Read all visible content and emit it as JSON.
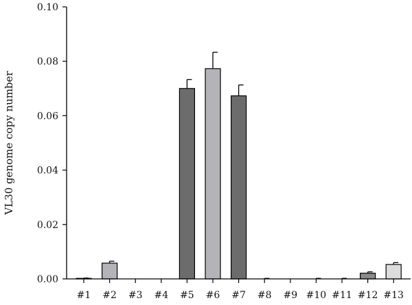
{
  "chart_data": {
    "type": "bar",
    "title": "",
    "xlabel": "",
    "ylabel": "VL30 genome copy number",
    "ylim": [
      0,
      0.1
    ],
    "yticks": [
      "0.00",
      "0.02",
      "0.04",
      "0.06",
      "0.08",
      "0.10"
    ],
    "grid": false,
    "categories": [
      "#1",
      "#2",
      "#3",
      "#4",
      "#5",
      "#6",
      "#7",
      "#8",
      "#9",
      "#10",
      "#11",
      "#12",
      "#13"
    ],
    "values": [
      0.0002,
      0.0058,
      0.0,
      0.0,
      0.07,
      0.0773,
      0.0673,
      0.0001,
      0.0,
      0.0001,
      0.0001,
      0.0021,
      0.0053
    ],
    "errors": [
      0.0001,
      0.0007,
      0.0,
      0.0,
      0.0033,
      0.006,
      0.004,
      0.0001,
      0.0,
      0.0001,
      0.0001,
      0.0005,
      0.0007
    ],
    "colors": [
      "#8c8c8c",
      "#b3b3b8",
      "#8c8c8c",
      "#8c8c8c",
      "#6c6c6c",
      "#b3b3b8",
      "#6c6c6c",
      "#8c8c8c",
      "#8c8c8c",
      "#8c8c8c",
      "#8c8c8c",
      "#8a8a8a",
      "#dcdcdc"
    ]
  }
}
